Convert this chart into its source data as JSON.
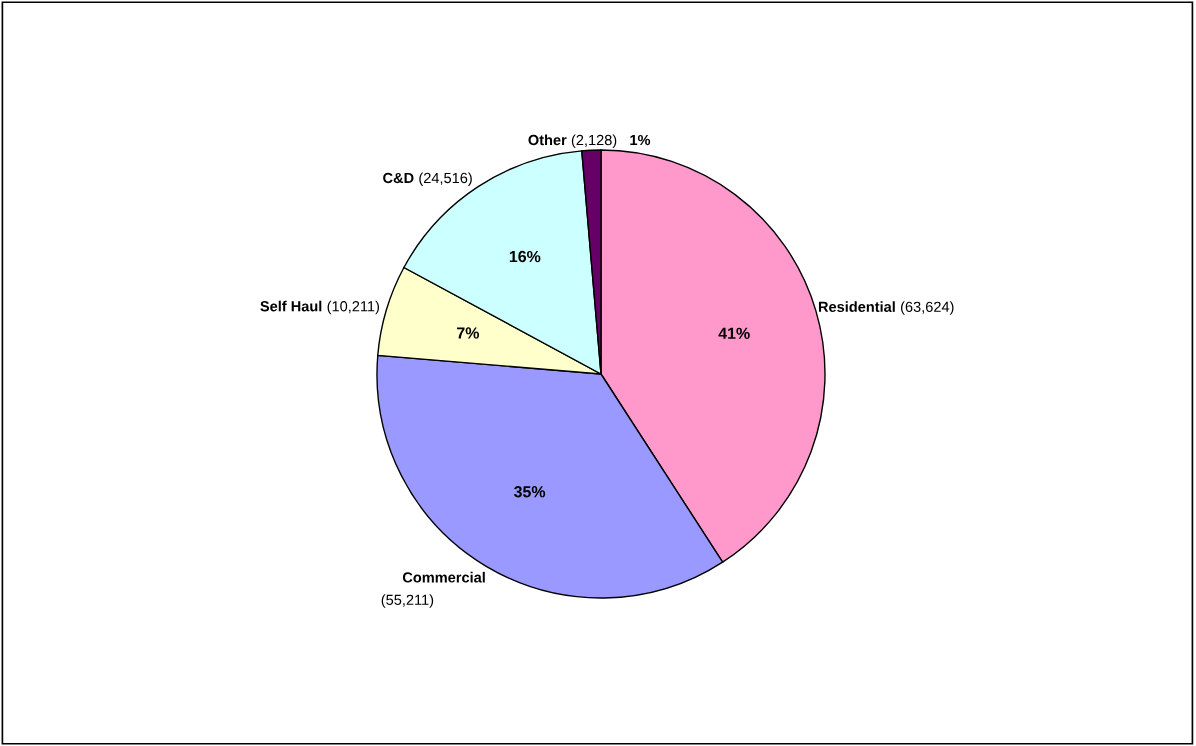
{
  "chart_data": {
    "type": "pie",
    "categories": [
      "Residential",
      "Commercial",
      "Self Haul",
      "C&D",
      "Other"
    ],
    "values": [
      63624,
      55211,
      10211,
      24516,
      2128
    ],
    "colors": [
      "#ff99cc",
      "#9999ff",
      "#ffffcc",
      "#ccffff",
      "#660066"
    ],
    "value_labels": [
      "(63,624)",
      "(55,211)",
      "(10,211)",
      "(24,516)",
      "(2,128)"
    ],
    "annotations": [
      "41%",
      "35%",
      "7%",
      "16%",
      "1%"
    ]
  }
}
